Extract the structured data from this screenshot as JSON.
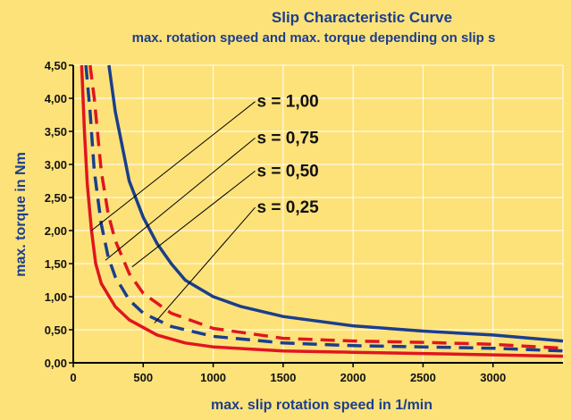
{
  "chart_data": {
    "type": "line",
    "title": "Slip Characteristic Curve",
    "subtitle": "max. rotation speed and max. torque depending on slip s",
    "xlabel": "max. slip rotation speed in 1/min",
    "ylabel": "max. torque in Nm",
    "xlim": [
      0,
      3500
    ],
    "ylim": [
      0,
      4.5
    ],
    "x_ticks": [
      {
        "value": 0,
        "label": "0"
      },
      {
        "value": 500,
        "label": "500"
      },
      {
        "value": 1000,
        "label": "1000"
      },
      {
        "value": 1500,
        "label": "1500"
      },
      {
        "value": 2000,
        "label": "2000"
      },
      {
        "value": 2500,
        "label": "2500"
      },
      {
        "value": 3000,
        "label": "3000"
      }
    ],
    "y_ticks": [
      {
        "value": 0,
        "label": "0,00"
      },
      {
        "value": 0.5,
        "label": "0,50"
      },
      {
        "value": 1.0,
        "label": "1,00"
      },
      {
        "value": 1.5,
        "label": "1,50"
      },
      {
        "value": 2.0,
        "label": "2,00"
      },
      {
        "value": 2.5,
        "label": "2,50"
      },
      {
        "value": 3.0,
        "label": "3,00"
      },
      {
        "value": 3.5,
        "label": "3,50"
      },
      {
        "value": 4.0,
        "label": "4,00"
      },
      {
        "value": 4.5,
        "label": "4,50"
      }
    ],
    "grid": true,
    "series": [
      {
        "name": "s = 1,00",
        "color": "#1b3e8c",
        "dash": "solid",
        "x": [
          255,
          300,
          400,
          500,
          600,
          700,
          800,
          1000,
          1200,
          1500,
          2000,
          2500,
          3000,
          3500
        ],
        "y": [
          4.5,
          3.8,
          2.75,
          2.2,
          1.8,
          1.5,
          1.25,
          1.0,
          0.85,
          0.7,
          0.56,
          0.48,
          0.42,
          0.33
        ],
        "pointer_to": [
          130,
          2.0
        ],
        "label_anchor": [
          1300,
          3.95
        ]
      },
      {
        "name": "s = 0,75",
        "color": "#1b3e8c",
        "dash": "dashed",
        "x": [
          90,
          120,
          150,
          200,
          250,
          300,
          400,
          500,
          700,
          1000,
          1500,
          2000,
          2500,
          3000,
          3500
        ],
        "y": [
          4.5,
          3.8,
          2.9,
          2.1,
          1.6,
          1.3,
          0.95,
          0.75,
          0.55,
          0.4,
          0.3,
          0.26,
          0.24,
          0.22,
          0.18
        ],
        "pointer_to": [
          230,
          1.55
        ],
        "label_anchor": [
          1300,
          3.4
        ]
      },
      {
        "name": "s = 0,50",
        "color": "#e0161e",
        "dash": "dashed",
        "x": [
          120,
          150,
          200,
          250,
          300,
          400,
          500,
          700,
          1000,
          1500,
          2000,
          2500,
          3000,
          3500
        ],
        "y": [
          4.5,
          4.0,
          2.9,
          2.25,
          1.85,
          1.35,
          1.05,
          0.75,
          0.52,
          0.37,
          0.33,
          0.31,
          0.28,
          0.22
        ],
        "pointer_to": [
          420,
          1.45
        ],
        "label_anchor": [
          1300,
          2.9
        ]
      },
      {
        "name": "s = 0,25",
        "color": "#e0161e",
        "dash": "solid",
        "x": [
          60,
          80,
          100,
          130,
          160,
          200,
          300,
          400,
          600,
          800,
          1000,
          1500,
          2000,
          2500,
          3000,
          3500
        ],
        "y": [
          4.5,
          3.5,
          2.7,
          2.0,
          1.5,
          1.2,
          0.85,
          0.65,
          0.42,
          0.3,
          0.24,
          0.18,
          0.16,
          0.14,
          0.12,
          0.1
        ],
        "pointer_to": [
          580,
          0.6
        ],
        "label_anchor": [
          1300,
          2.35
        ]
      }
    ]
  }
}
